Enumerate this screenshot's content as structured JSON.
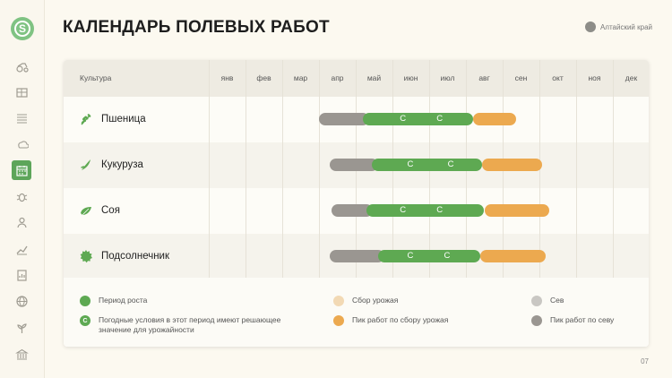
{
  "title": "КАЛЕНДАРЬ ПОЛЕВЫХ РАБОТ",
  "region": "Алтайский край",
  "page_number": "07",
  "logo_letter": "S",
  "sidebar_icons": [
    "tractor-icon",
    "warehouse-icon",
    "field-icon",
    "weather-icon",
    "calendar-icon",
    "bug-icon",
    "farmer-icon",
    "growth-chart-icon",
    "document-chart-icon",
    "globe-icon",
    "plant-icon",
    "bank-icon"
  ],
  "table": {
    "culture_header": "Культура",
    "months": [
      "янв",
      "фев",
      "мар",
      "апр",
      "май",
      "июн",
      "июл",
      "авг",
      "сен",
      "окт",
      "ноя",
      "дек"
    ],
    "critical_symbol": "С",
    "crops": [
      {
        "name": "Пшеница",
        "icon": "wheat-icon",
        "sowing": [
          4.0,
          5.2
        ],
        "growth": [
          5.2,
          8.2
        ],
        "harvest": [
          8.2,
          9.2
        ],
        "critical_weather": [
          6.3,
          7.3
        ]
      },
      {
        "name": "Кукуруза",
        "icon": "corn-icon",
        "sowing": [
          4.3,
          5.45
        ],
        "growth": [
          5.45,
          8.45
        ],
        "harvest": [
          8.45,
          9.9
        ],
        "critical_weather": [
          6.5,
          7.6
        ]
      },
      {
        "name": "Соя",
        "icon": "soy-icon",
        "sowing": [
          4.35,
          5.3
        ],
        "growth": [
          5.3,
          8.5
        ],
        "harvest": [
          8.5,
          10.1
        ],
        "critical_weather": [
          6.3,
          7.3
        ]
      },
      {
        "name": "Подсолнечник",
        "icon": "sunflower-icon",
        "sowing": [
          4.3,
          5.6
        ],
        "growth": [
          5.6,
          8.4
        ],
        "harvest": [
          8.4,
          10.0
        ],
        "critical_weather": [
          6.5,
          7.5
        ]
      }
    ]
  },
  "legend": {
    "growth": "Период роста",
    "critical": "Погодные условия в этот период имеют решающее значение для урожайности",
    "harvest": "Сбор урожая",
    "harvest_peak": "Пик работ по сбору урожая",
    "sowing": "Сев",
    "sowing_peak": "Пик работ по севу"
  },
  "colors": {
    "growth": "#5ea952",
    "harvest": "#f2d9b4",
    "harvest_peak": "#eca94f",
    "sowing": "#c9c7c3",
    "sowing_peak": "#9a9691",
    "accent": "#5da55a"
  }
}
